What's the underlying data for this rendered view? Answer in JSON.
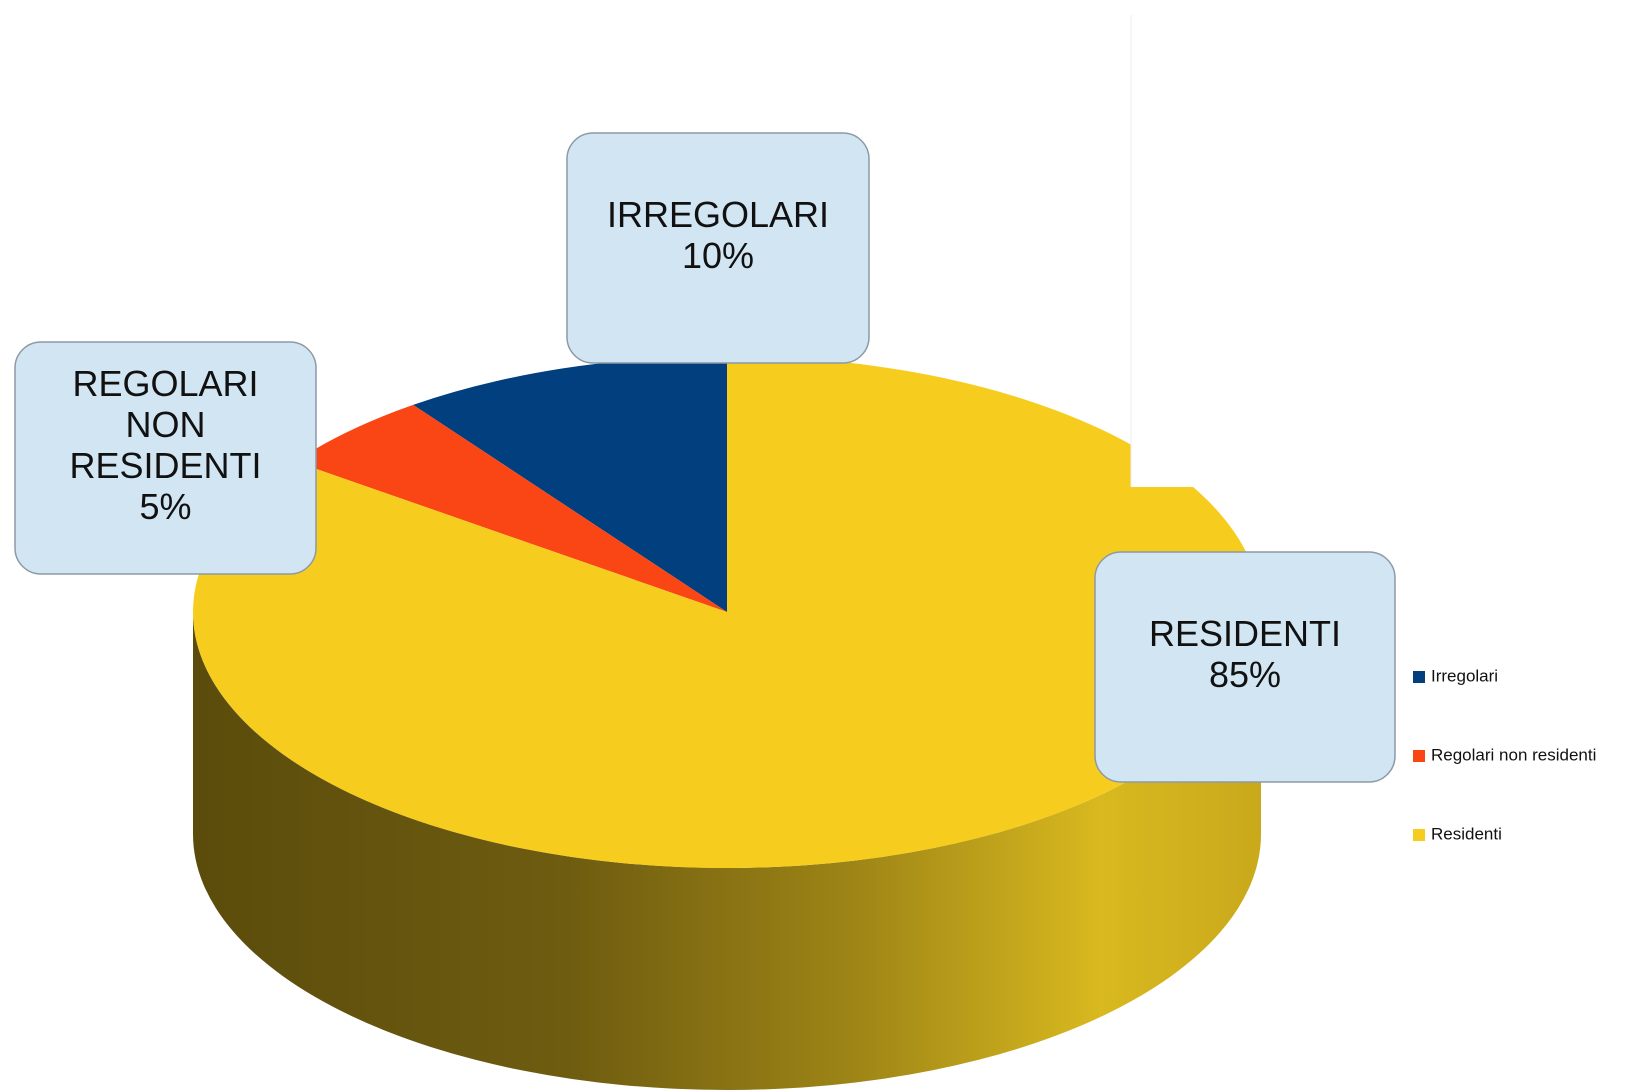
{
  "chart_data": {
    "type": "pie",
    "categories": [
      "Irregolari",
      "Regolari non residenti",
      "Residenti"
    ],
    "values": [
      10,
      5,
      85
    ],
    "value_labels": [
      "10%",
      "5%",
      "85%"
    ],
    "data_labels": [
      [
        "IRREGOLARI"
      ],
      [
        "REGOLARI",
        "NON",
        "RESIDENTI"
      ],
      [
        "RESIDENTI"
      ]
    ],
    "colors": [
      "#013f7e",
      "#fa4614",
      "#f6cd1f"
    ],
    "legend": "right"
  }
}
